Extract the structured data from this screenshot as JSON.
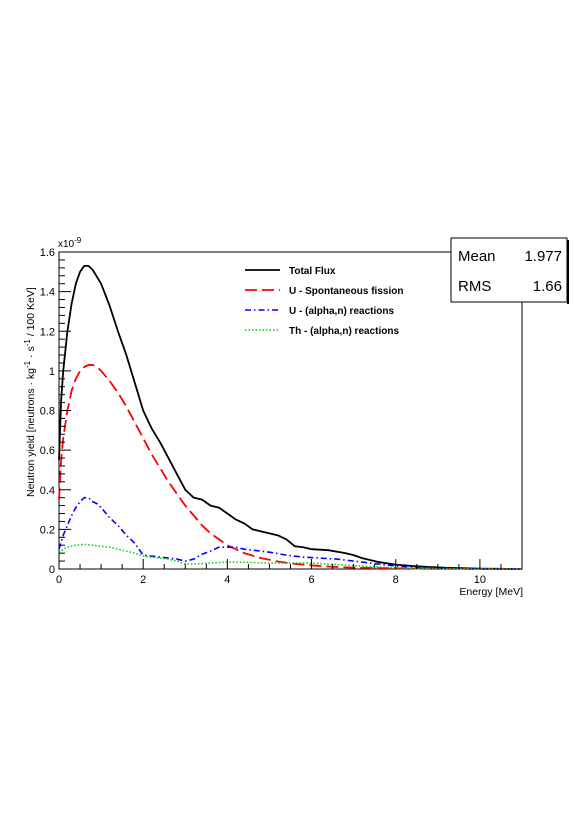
{
  "chart_data": {
    "type": "line",
    "xlabel": "Energy [MeV]",
    "ylabel": "Neutron yield [neutrons · kg",
    "ylabel_sup1": "-1",
    "ylabel_mid": " · s",
    "ylabel_sup2": "-1",
    "ylabel_end": " / 100 KeV]",
    "y_exponent": "x10",
    "y_exponent_power": "-9",
    "xlim": [
      0,
      11
    ],
    "ylim": [
      0,
      1.6
    ],
    "x_ticks": [
      0,
      2,
      4,
      6,
      8,
      10
    ],
    "x_tick_labels": [
      "0",
      "2",
      "4",
      "6",
      "8",
      "10"
    ],
    "y_ticks": [
      0,
      0.2,
      0.4,
      0.6,
      0.8,
      1,
      1.2,
      1.4,
      1.6
    ],
    "y_tick_labels": [
      "0",
      "0.2",
      "0.4",
      "0.6",
      "0.8",
      "1",
      "1.2",
      "1.4",
      "1.6"
    ],
    "stats": {
      "mean_label": "Mean",
      "mean_value": "1.977",
      "rms_label": "RMS",
      "rms_value": "1.66"
    },
    "legend_position": "top-right",
    "series": [
      {
        "name": "Total Flux",
        "color": "#000000",
        "style": "solid",
        "x": [
          0,
          0.05,
          0.1,
          0.2,
          0.3,
          0.4,
          0.5,
          0.6,
          0.7,
          0.8,
          1.0,
          1.2,
          1.4,
          1.6,
          1.8,
          2.0,
          2.2,
          2.4,
          2.6,
          2.8,
          3.0,
          3.2,
          3.4,
          3.6,
          3.8,
          4.0,
          4.2,
          4.4,
          4.6,
          4.8,
          5.0,
          5.2,
          5.4,
          5.6,
          5.8,
          6.0,
          6.4,
          6.8,
          7.0,
          7.2,
          7.6,
          8.0,
          8.4,
          8.8,
          9.2,
          9.6,
          10.0,
          10.4,
          10.8,
          11.0
        ],
        "y": [
          0.55,
          0.85,
          1.0,
          1.2,
          1.34,
          1.44,
          1.5,
          1.53,
          1.53,
          1.51,
          1.44,
          1.33,
          1.2,
          1.08,
          0.94,
          0.8,
          0.71,
          0.64,
          0.56,
          0.48,
          0.4,
          0.36,
          0.35,
          0.32,
          0.31,
          0.28,
          0.25,
          0.23,
          0.2,
          0.19,
          0.18,
          0.17,
          0.15,
          0.115,
          0.11,
          0.1,
          0.095,
          0.08,
          0.07,
          0.055,
          0.035,
          0.022,
          0.015,
          0.01,
          0.006,
          0.004,
          0.002,
          0.001,
          0.0,
          0.0
        ]
      },
      {
        "name": "U - Spontaneous fission",
        "color": "#ff0000",
        "style": "dashed",
        "x": [
          0,
          0.05,
          0.1,
          0.2,
          0.3,
          0.4,
          0.5,
          0.6,
          0.7,
          0.8,
          0.9,
          1.0,
          1.2,
          1.4,
          1.6,
          1.8,
          2.0,
          2.2,
          2.4,
          2.6,
          2.8,
          3.0,
          3.2,
          3.4,
          3.6,
          3.8,
          4.0,
          4.4,
          4.8,
          5.2,
          5.6,
          6.0,
          6.5,
          7.0,
          7.5,
          8.0,
          8.5,
          9.0,
          9.5,
          10.0,
          10.5,
          11.0
        ],
        "y": [
          0.35,
          0.55,
          0.66,
          0.8,
          0.9,
          0.96,
          1.0,
          1.02,
          1.03,
          1.03,
          1.02,
          1.0,
          0.95,
          0.89,
          0.82,
          0.74,
          0.66,
          0.58,
          0.51,
          0.44,
          0.38,
          0.32,
          0.27,
          0.22,
          0.18,
          0.15,
          0.12,
          0.08,
          0.055,
          0.038,
          0.026,
          0.018,
          0.011,
          0.007,
          0.005,
          0.003,
          0.002,
          0.001,
          0.001,
          0.0,
          0.0,
          0.0
        ]
      },
      {
        "name": "U - (alpha,n) reactions",
        "color": "#0000ff",
        "style": "dashdot",
        "x": [
          0,
          0.1,
          0.2,
          0.3,
          0.4,
          0.5,
          0.6,
          0.7,
          0.8,
          0.9,
          1.0,
          1.2,
          1.4,
          1.6,
          1.8,
          2.0,
          2.2,
          2.4,
          2.6,
          2.8,
          3.0,
          3.2,
          3.4,
          3.6,
          3.8,
          4.0,
          4.2,
          4.4,
          4.6,
          4.8,
          5.0,
          5.4,
          5.8,
          6.2,
          6.6,
          7.0,
          7.4,
          7.8,
          8.2,
          8.6,
          9.0,
          9.5,
          10.0,
          11.0
        ],
        "y": [
          0.1,
          0.17,
          0.22,
          0.27,
          0.31,
          0.34,
          0.36,
          0.36,
          0.34,
          0.33,
          0.31,
          0.26,
          0.22,
          0.17,
          0.13,
          0.07,
          0.065,
          0.06,
          0.055,
          0.05,
          0.04,
          0.05,
          0.075,
          0.09,
          0.11,
          0.11,
          0.11,
          0.1,
          0.095,
          0.09,
          0.085,
          0.07,
          0.06,
          0.055,
          0.05,
          0.04,
          0.03,
          0.02,
          0.012,
          0.008,
          0.005,
          0.003,
          0.001,
          0.0
        ]
      },
      {
        "name": "Th - (alpha,n) reactions",
        "color": "#00cc00",
        "style": "dotted",
        "x": [
          0,
          0.1,
          0.2,
          0.4,
          0.6,
          0.8,
          1.0,
          1.2,
          1.4,
          1.6,
          1.8,
          2.0,
          2.2,
          2.4,
          2.6,
          2.8,
          3.0,
          3.2,
          3.6,
          4.0,
          4.4,
          4.8,
          5.2,
          5.6,
          6.0,
          6.4,
          6.8,
          7.2,
          7.6,
          8.0,
          8.5,
          9.0,
          10.0,
          11.0
        ],
        "y": [
          0.08,
          0.1,
          0.11,
          0.12,
          0.125,
          0.12,
          0.115,
          0.11,
          0.1,
          0.09,
          0.08,
          0.065,
          0.06,
          0.055,
          0.05,
          0.04,
          0.025,
          0.025,
          0.03,
          0.035,
          0.035,
          0.03,
          0.03,
          0.03,
          0.03,
          0.025,
          0.02,
          0.015,
          0.01,
          0.006,
          0.004,
          0.002,
          0.0,
          0.0
        ]
      }
    ]
  }
}
